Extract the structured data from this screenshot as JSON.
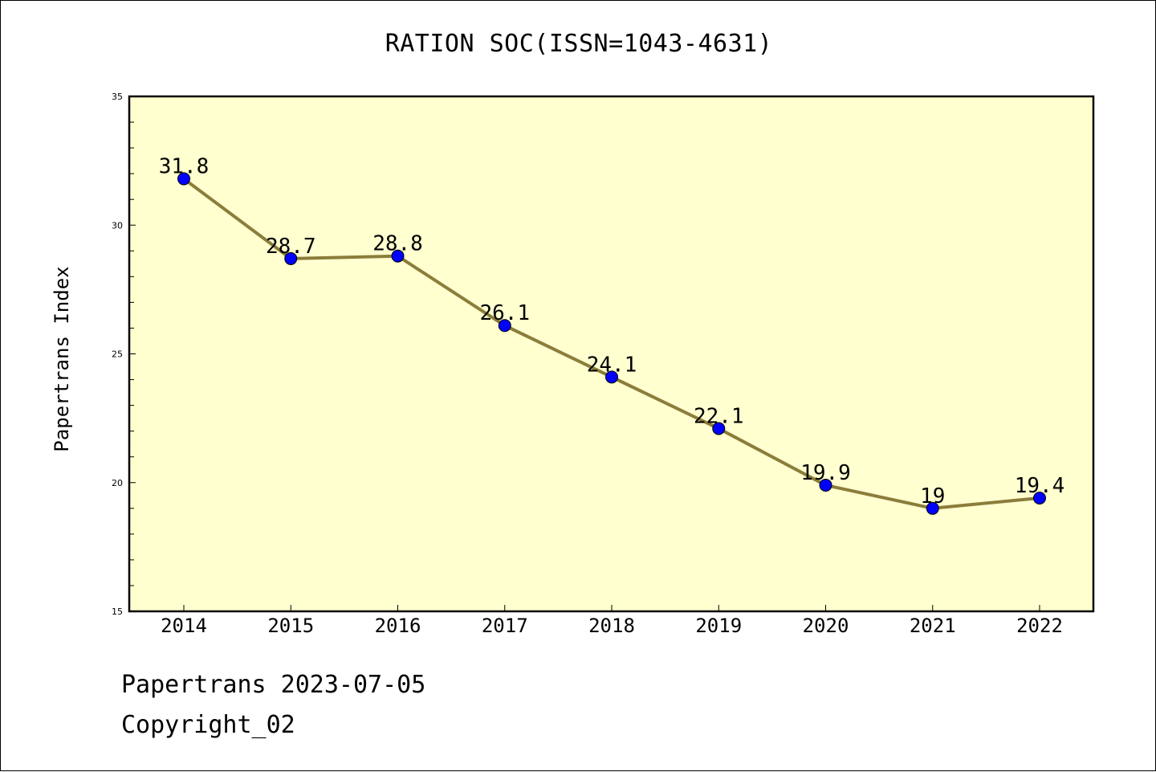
{
  "chart_data": {
    "type": "line",
    "title": "RATION SOC(ISSN=1043-4631)",
    "ylabel": "Papertrans Index",
    "xlabel": "",
    "categories": [
      "2014",
      "2015",
      "2016",
      "2017",
      "2018",
      "2019",
      "2020",
      "2021",
      "2022"
    ],
    "values": [
      31.8,
      28.7,
      28.8,
      26.1,
      24.1,
      22.1,
      19.9,
      19,
      19.4
    ],
    "data_labels": [
      "31.8",
      "28.7",
      "28.8",
      "26.1",
      "24.1",
      "22.1",
      "19.9",
      "19",
      "19.4"
    ],
    "ylim": [
      15,
      35
    ],
    "yticks": [
      "15",
      "20",
      "25",
      "30",
      "35"
    ],
    "grid": false,
    "colors": {
      "plot_background": "#ffffd0",
      "line": "#8b7d3a",
      "marker": "#0000ff"
    }
  },
  "footer": {
    "line1": "Papertrans 2023-07-05",
    "line2": "Copyright_02"
  }
}
